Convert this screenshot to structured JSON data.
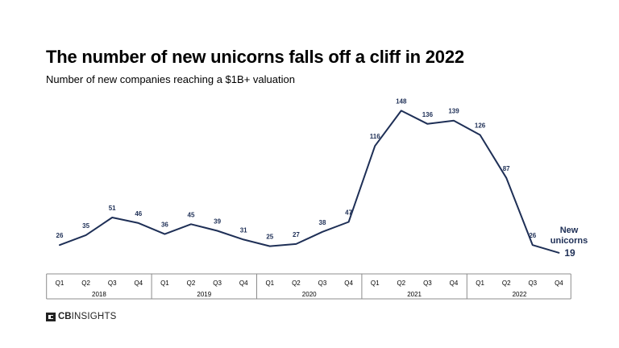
{
  "header": {
    "title": "The number of new unicorns falls off a cliff in 2022",
    "subtitle": "Number of new companies reaching a $1B+ valuation"
  },
  "brand": {
    "logo_bold": "CB",
    "logo_rest": "INSIGHTS",
    "icon": "cb-insights-logo-icon"
  },
  "colors": {
    "line": "#1e2f56",
    "axis": "#8c8c8c",
    "text": "#000000"
  },
  "chart_data": {
    "type": "line",
    "title": "The number of new unicorns falls off a cliff in 2022",
    "subtitle": "Number of new companies reaching a $1B+ valuation",
    "xlabel": "",
    "ylabel": "",
    "ylim": [
      0,
      160
    ],
    "grid": false,
    "legend": "none",
    "years": [
      "2018",
      "2019",
      "2020",
      "2021",
      "2022"
    ],
    "quarters": [
      "Q1",
      "Q2",
      "Q3",
      "Q4"
    ],
    "categories": [
      "2018 Q1",
      "2018 Q2",
      "2018 Q3",
      "2018 Q4",
      "2019 Q1",
      "2019 Q2",
      "2019 Q3",
      "2019 Q4",
      "2020 Q1",
      "2020 Q2",
      "2020 Q3",
      "2020 Q4",
      "2021 Q1",
      "2021 Q2",
      "2021 Q3",
      "2021 Q4",
      "2022 Q1",
      "2022 Q2",
      "2022 Q3",
      "2022 Q4"
    ],
    "series": [
      {
        "name": "",
        "values": [
          26,
          35,
          51,
          46,
          36,
          45,
          39,
          31,
          25,
          27,
          38,
          47,
          116,
          148,
          136,
          139,
          126,
          87,
          26,
          19
        ]
      }
    ],
    "annotation": {
      "label_line1": "New",
      "label_line2": "unicorns",
      "value": "19"
    }
  }
}
